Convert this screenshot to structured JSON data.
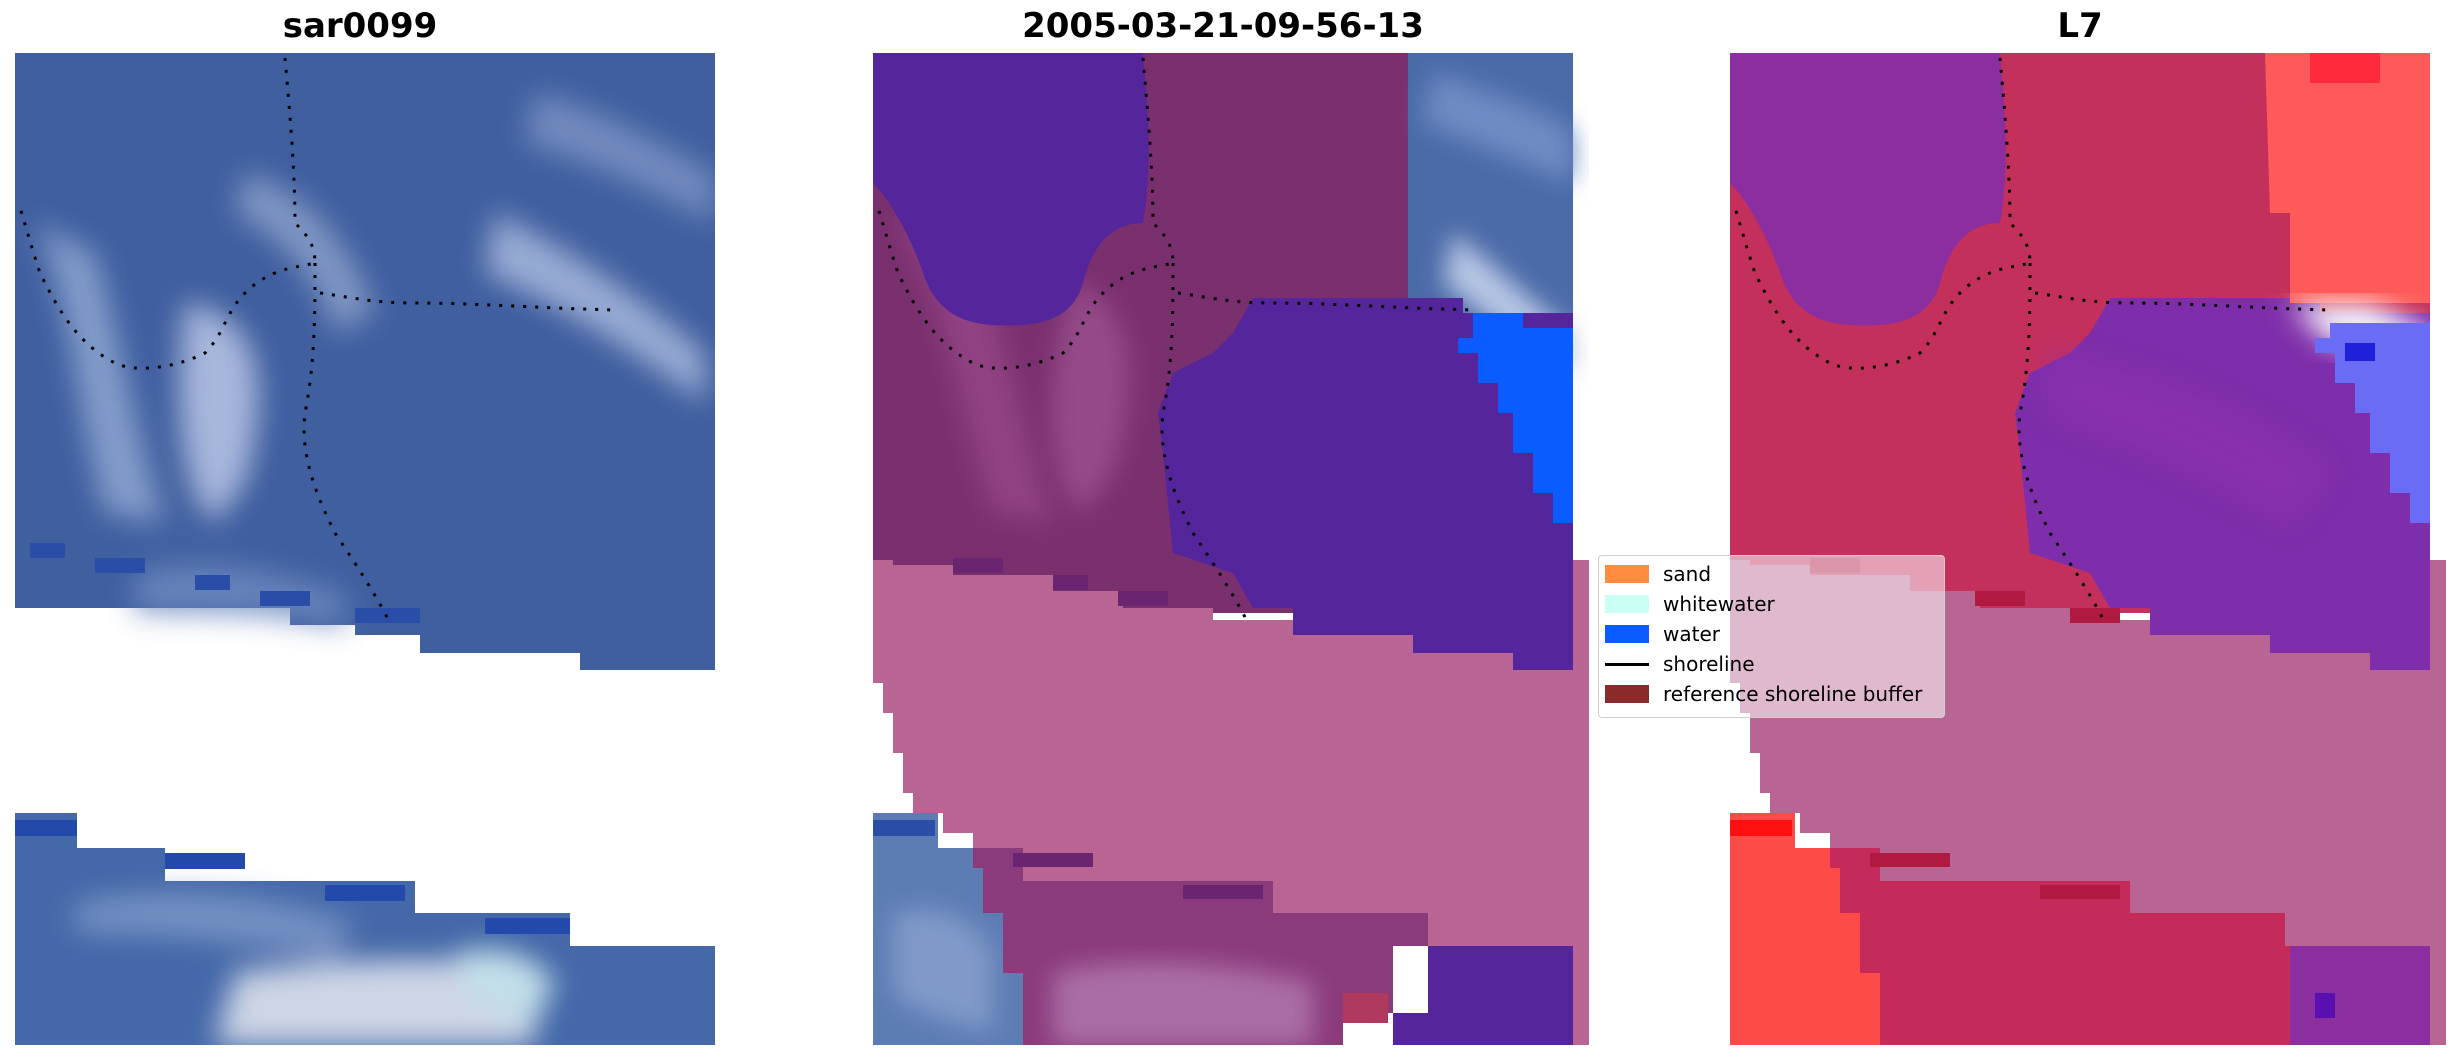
{
  "titles": {
    "left": "sar0099",
    "center": "2005-03-21-09-56-13",
    "right": "L7"
  },
  "legend": {
    "items": [
      {
        "label": "sand",
        "color": "#ff8c3f",
        "kind": "patch"
      },
      {
        "label": "whitewater",
        "color": "#c9fff5",
        "kind": "patch"
      },
      {
        "label": "water",
        "color": "#0a5cff",
        "kind": "patch"
      },
      {
        "label": "shoreline",
        "color": "#000000",
        "kind": "line"
      },
      {
        "label": "reference shoreline buffer",
        "color": "#8b2a2a",
        "kind": "patch"
      }
    ]
  },
  "colors": {
    "rgb_water": "#3e5f9e",
    "rgb_light": "#8fa4cc",
    "classified_purple": "#5a2a9c",
    "classified_maroon": "#7a2f6e",
    "buffer_pink": "#b96593",
    "water_blue": "#0a5cff",
    "index_red": "#ff4a4a",
    "index_crimson": "#c42a5a",
    "index_violet": "#7a2eb0"
  }
}
